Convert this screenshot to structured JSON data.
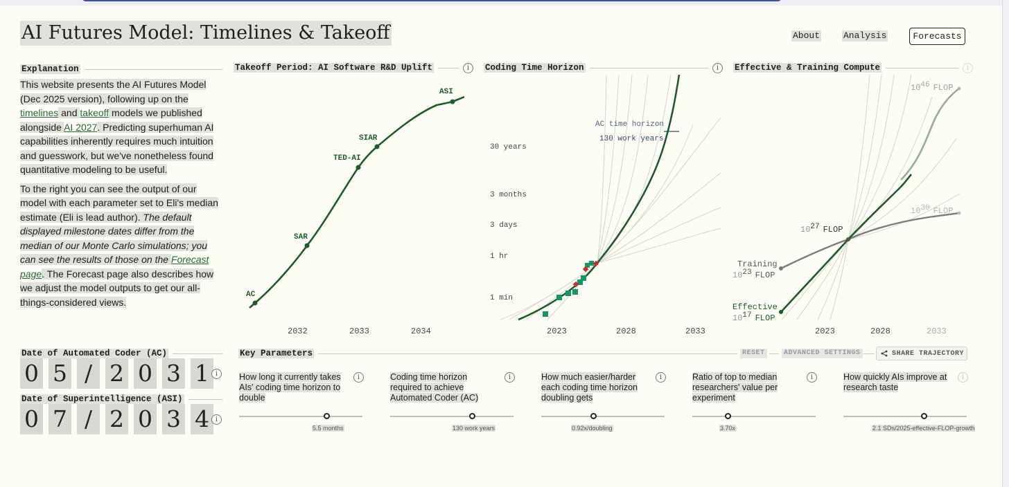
{
  "title": "AI Futures Model: Timelines & Takeoff",
  "nav": {
    "about": "About",
    "analysis": "Analysis",
    "forecasts": "Forecasts"
  },
  "explanation": {
    "heading": "Explanation",
    "p1_pre": "This website presents the AI Futures Model (Dec 2025 version), following up on the ",
    "link_timelines": "timelines",
    "and": " and ",
    "link_takeoff": "takeoff",
    "p1_mid": " models we published alongside ",
    "link_ai2027": "AI 2027",
    "p1_post": ". Predicting superhuman AI capabilities inherently requires much intuition and guesswork, but we've nonetheless found quantitative modeling to be useful.",
    "p2_pre": "To the right you can see the output of our model with each parameter set to Eli's median estimate (Eli is lead author). ",
    "p2_italic": "The default displayed milestone dates differ from the median of our Monte Carlo simulations; you can see the results of those on the ",
    "link_forecast": "Forecast page",
    "p2_post": ". The Forecast page also describes how we adjust the model outputs to get our all-things-considered views."
  },
  "dates": {
    "ac_label": "Date of Automated Coder (AC)",
    "ac_digits": [
      "0",
      "5",
      "/",
      "2",
      "0",
      "3",
      "1"
    ],
    "asi_label": "Date of Superintelligence (ASI)",
    "asi_digits": [
      "0",
      "7",
      "/",
      "2",
      "0",
      "3",
      "4"
    ]
  },
  "charts": {
    "takeoff_title": "Takeoff Period: AI Software R&D Uplift",
    "horizon_title": "Coding Time Horizon",
    "compute_title": "Effective & Training Compute"
  },
  "chart_data": [
    {
      "type": "line",
      "title": "Takeoff Period: AI Software R&D Uplift",
      "x_ticks": [
        "2032",
        "2033",
        "2034"
      ],
      "milestones": [
        {
          "name": "AC",
          "x": 2031.4
        },
        {
          "name": "SAR",
          "x": 2032.1
        },
        {
          "name": "TED-AI",
          "x": 2032.9
        },
        {
          "name": "SIAR",
          "x": 2033.2
        },
        {
          "name": "ASI",
          "x": 2034.5
        }
      ]
    },
    {
      "type": "line",
      "title": "Coding Time Horizon",
      "x_ticks": [
        "2023",
        "2028",
        "2033"
      ],
      "y_ticks": [
        "1 min",
        "1 hr",
        "3 days",
        "3 months",
        "30 years"
      ],
      "y_scale": "log",
      "annotation": {
        "line1": "AC time horizon",
        "line2": "130 work years"
      }
    },
    {
      "type": "line",
      "title": "Effective & Training Compute",
      "x_ticks": [
        "2023",
        "2028",
        "2033"
      ],
      "y_scale": "log",
      "series": [
        {
          "name": "Effective",
          "start_flop_exp": 17,
          "end_flop_exp": 46
        },
        {
          "name": "Training",
          "start_flop_exp": 23,
          "end_flop_exp": 30
        }
      ],
      "crosspoint_flop_exp": 27,
      "labels": {
        "effective": "Effective",
        "training": "Training",
        "flop": "FLOP",
        "ten": "10",
        "e17": "17",
        "e23": "23",
        "e27": "27",
        "e30": "30",
        "e46": "46"
      }
    }
  ],
  "params": {
    "heading": "Key Parameters",
    "reset": "RESET",
    "advanced": "ADVANCED SETTINGS",
    "share": "SHARE TRAJECTORY",
    "items": [
      {
        "q": "How long it currently takes AIs' coding time horizon to double",
        "value": "5.5 months",
        "level": 0.71
      },
      {
        "q": "Coding time horizon required to achieve Automated Coder (AC)",
        "value": "130 work years",
        "level": 0.66
      },
      {
        "q": "How much easier/harder each coding time horizon doubling gets",
        "value": "0.92x/doubling",
        "level": 0.42
      },
      {
        "q": "Ratio of top to median researchers' value per experiment",
        "value": "3.70x",
        "level": 0.29
      },
      {
        "q": "How quickly AIs improve at research taste",
        "value": "2.1 SDs/2025-effective-FLOP-growth",
        "level": 0.65
      }
    ]
  },
  "colors": {
    "accent": "#1e5a2c",
    "marker_green": "#1a9467",
    "marker_red": "#c6312c",
    "background": "#fdfdf6"
  }
}
